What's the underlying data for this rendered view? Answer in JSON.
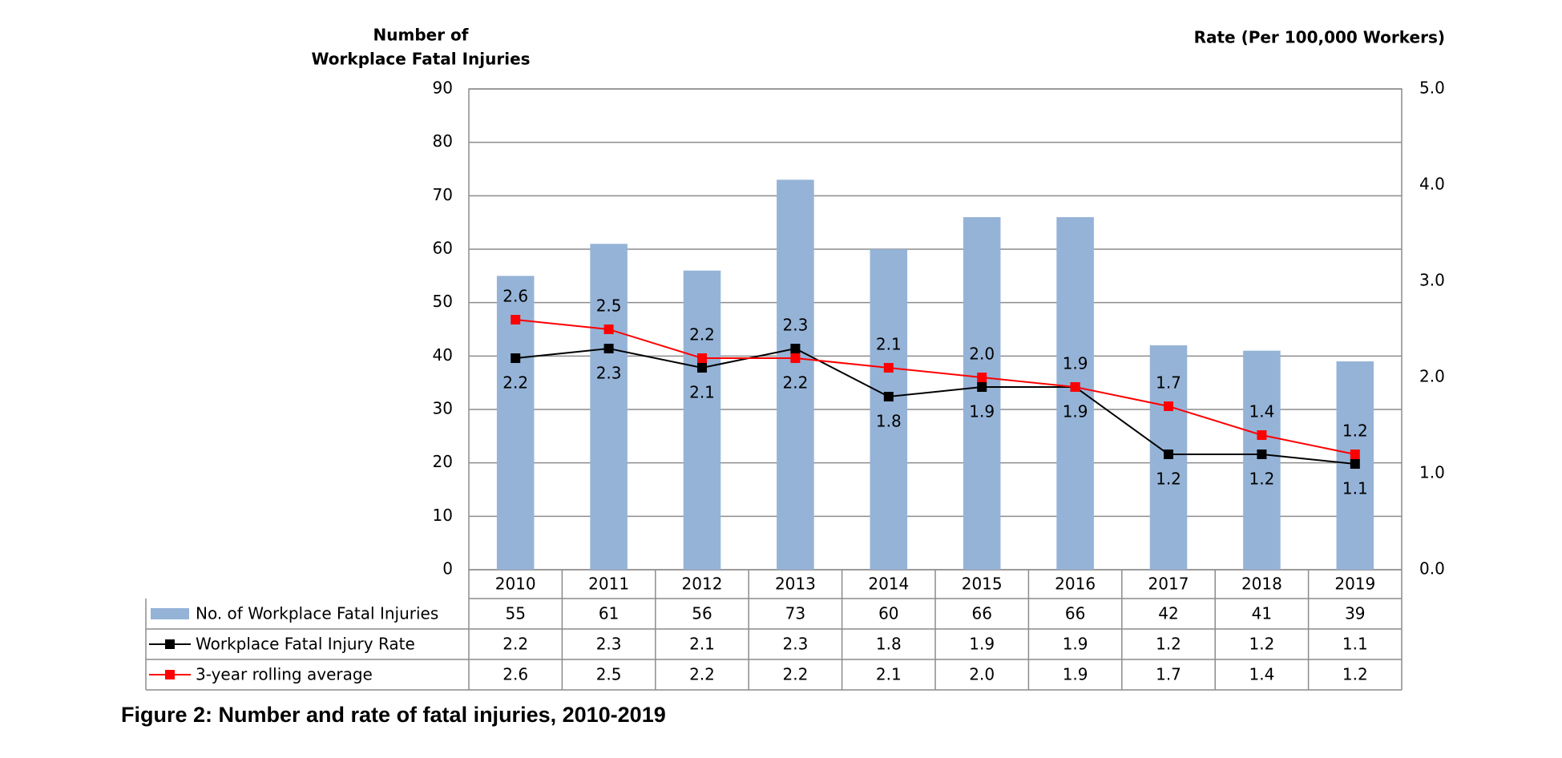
{
  "chart_data": {
    "type": "bar_line",
    "title": "Figure 2: Number and rate of fatal injuries, 2010-2019",
    "y_label": [
      "Number of",
      "Workplace Fatal Injuries"
    ],
    "y2_label": "Rate (Per 100,000 Workers)",
    "categories": [
      "2010",
      "2011",
      "2012",
      "2013",
      "2014",
      "2015",
      "2016",
      "2017",
      "2018",
      "2019"
    ],
    "series": [
      {
        "name": "No. of Workplace Fatal Injuries",
        "type": "bar",
        "color": "#95b3d7",
        "values": [
          55,
          61,
          56,
          73,
          60,
          66,
          66,
          42,
          41,
          39
        ]
      },
      {
        "name": "Workplace Fatal Injury Rate",
        "type": "line",
        "axis": "y2",
        "color": "#000000",
        "values": [
          2.2,
          2.3,
          2.1,
          2.3,
          1.8,
          1.9,
          1.9,
          1.2,
          1.2,
          1.1
        ]
      },
      {
        "name": "3-year rolling average",
        "type": "line",
        "axis": "y2",
        "color": "#ff0000",
        "values": [
          2.6,
          2.5,
          2.2,
          2.2,
          2.1,
          2.0,
          1.9,
          1.7,
          1.4,
          1.2
        ],
        "value_labels": [
          "2.6",
          "2.5",
          "2.2",
          "2.2",
          "2.1",
          "2.0",
          "1.9",
          "1.7",
          "1.4",
          "1.2"
        ]
      }
    ],
    "ylim": [
      0,
      90
    ],
    "yticks": [
      0,
      10,
      20,
      30,
      40,
      50,
      60,
      70,
      80,
      90
    ],
    "y2lim": [
      0,
      5
    ],
    "y2ticks": [
      {
        "value": 0,
        "label": "0.0"
      },
      {
        "value": 1,
        "label": "1.0"
      },
      {
        "value": 2,
        "label": "2.0"
      },
      {
        "value": 3,
        "label": "3.0"
      },
      {
        "value": 4,
        "label": "4.0"
      },
      {
        "value": 5,
        "label": "5.0"
      }
    ],
    "grid": true
  }
}
